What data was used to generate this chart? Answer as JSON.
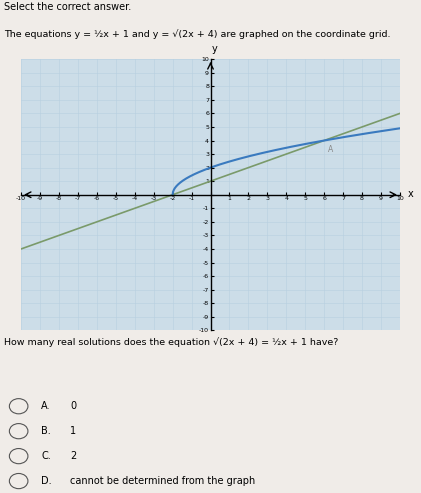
{
  "title_line1": "Select the correct answer.",
  "title_line2_plain": "The equations y = ½x + 1 and y = √(2x + 4) are graphed on the coordinate grid.",
  "xmin": -10,
  "xmax": 10,
  "ymin": -10,
  "ymax": 10,
  "line_color": "#7a9a6a",
  "sqrt_color": "#3a7abf",
  "grid_color": "#b8cfe0",
  "grid_bg": "#ccdde8",
  "question_plain": "How many real solutions does the equation √(2x + 4) = ½x + 1 have?",
  "option_labels": [
    "A.",
    "B.",
    "C.",
    "D."
  ],
  "option_values": [
    "0",
    "1",
    "2",
    "cannot be determined from the graph"
  ],
  "fig_width": 4.21,
  "fig_height": 4.93,
  "dpi": 100
}
